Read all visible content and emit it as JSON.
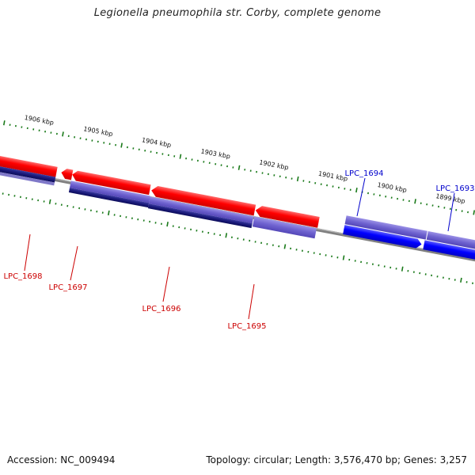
{
  "title": "Legionella pneumophila str. Corby, complete genome",
  "footer": {
    "accession": "Accession: NC_009494",
    "summary": "Topology: circular; Length: 3,576,470 bp; Genes: 3,257"
  },
  "scale_labels": [
    "1906 kbp",
    "1905 kbp",
    "1904 kbp",
    "1903 kbp",
    "1902 kbp",
    "1901 kbp",
    "1900 kbp",
    "1899 kbp"
  ],
  "genes": [
    {
      "name": "LPC_1698",
      "strand": "reverse",
      "color": "#cc0000"
    },
    {
      "name": "LPC_1697",
      "strand": "reverse",
      "color": "#cc0000"
    },
    {
      "name": "LPC_1696",
      "strand": "reverse",
      "color": "#cc0000"
    },
    {
      "name": "LPC_1695",
      "strand": "reverse",
      "color": "#cc0000"
    },
    {
      "name": "LPC_1694",
      "strand": "forward",
      "color": "#0000cc"
    },
    {
      "name": "LPC_1693",
      "strand": "forward",
      "color": "#0000cc"
    }
  ],
  "colors": {
    "reverse_gene": "#ff0000",
    "forward_gene": "#0000ff",
    "cds_reverse": "#6655cc",
    "cds_forward": "#6655cc",
    "backbone": "#808080",
    "ticks": "#1a7a1a"
  }
}
